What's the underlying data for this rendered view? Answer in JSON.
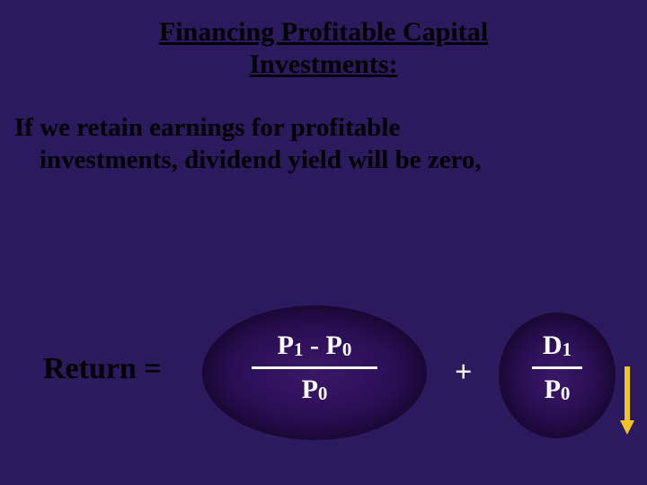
{
  "slide": {
    "background_color": "#2c1a5e",
    "title_color": "#000000",
    "body_color": "#000000",
    "formula_text_color": "#ffffff",
    "ellipse_fill": "#3a1766",
    "arrow_color": "#f2c428",
    "title_line1": "Financing Profitable Capital",
    "title_line2": "Investments:",
    "body_line1": "If we retain earnings for profitable",
    "body_line2": "investments, dividend yield will be zero,",
    "equation": {
      "lhs": "Return =",
      "frac1_num_a": "P",
      "frac1_num_a_sub": "1",
      "frac1_minus": " - ",
      "frac1_num_b": "P",
      "frac1_num_b_sub": "0",
      "frac1_den": "P",
      "frac1_den_sub": "0",
      "plus": "+",
      "frac2_num": "D",
      "frac2_num_sub": "1",
      "frac2_den": "P",
      "frac2_den_sub": "0"
    }
  }
}
